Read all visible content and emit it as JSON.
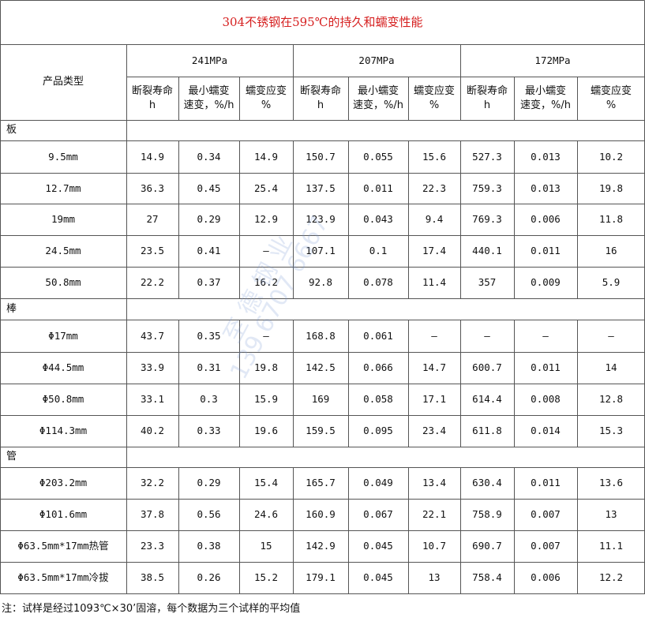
{
  "title": "304不锈钢在595℃的持久和蠕变性能",
  "header": {
    "product_type": "产品类型",
    "stress_groups": [
      "241MPa",
      "207MPa",
      "172MPa"
    ],
    "sub_columns": [
      "断裂寿命\nh",
      "最小蠕变\n速变，%/h",
      "蠕变应变\n%"
    ]
  },
  "sections": [
    {
      "name": "板",
      "rows": [
        {
          "label": "9.5mm",
          "values": [
            "14.9",
            "0.34",
            "14.9",
            "150.7",
            "0.055",
            "15.6",
            "527.3",
            "0.013",
            "10.2"
          ]
        },
        {
          "label": "12.7mm",
          "values": [
            "36.3",
            "0.45",
            "25.4",
            "137.5",
            "0.011",
            "22.3",
            "759.3",
            "0.013",
            "19.8"
          ]
        },
        {
          "label": "19mm",
          "values": [
            "27",
            "0.29",
            "12.9",
            "123.9",
            "0.043",
            "9.4",
            "769.3",
            "0.006",
            "11.8"
          ]
        },
        {
          "label": "24.5mm",
          "values": [
            "23.5",
            "0.41",
            "—",
            "107.1",
            "0.1",
            "17.4",
            "440.1",
            "0.011",
            "16"
          ]
        },
        {
          "label": "50.8mm",
          "values": [
            "22.2",
            "0.37",
            "16.2",
            "92.8",
            "0.078",
            "11.4",
            "357",
            "0.009",
            "5.9"
          ]
        }
      ]
    },
    {
      "name": "棒",
      "rows": [
        {
          "label": "Φ17mm",
          "values": [
            "43.7",
            "0.35",
            "—",
            "168.8",
            "0.061",
            "—",
            "—",
            "—",
            "—"
          ]
        },
        {
          "label": "Φ44.5mm",
          "values": [
            "33.9",
            "0.31",
            "19.8",
            "142.5",
            "0.066",
            "14.7",
            "600.7",
            "0.011",
            "14"
          ]
        },
        {
          "label": "Φ50.8mm",
          "values": [
            "33.1",
            "0.3",
            "15.9",
            "169",
            "0.058",
            "17.1",
            "614.4",
            "0.008",
            "12.8"
          ]
        },
        {
          "label": "Φ114.3mm",
          "values": [
            "40.2",
            "0.33",
            "19.6",
            "159.5",
            "0.095",
            "23.4",
            "611.8",
            "0.014",
            "15.3"
          ]
        }
      ]
    },
    {
      "name": "管",
      "rows": [
        {
          "label": "Φ203.2mm",
          "values": [
            "32.2",
            "0.29",
            "15.4",
            "165.7",
            "0.049",
            "13.4",
            "630.4",
            "0.011",
            "13.6"
          ]
        },
        {
          "label": "Φ101.6mm",
          "values": [
            "37.8",
            "0.56",
            "24.6",
            "160.9",
            "0.067",
            "22.1",
            "758.9",
            "0.007",
            "13"
          ]
        },
        {
          "label": "Φ63.5mm*17mm热管",
          "values": [
            "23.3",
            "0.38",
            "15",
            "142.9",
            "0.045",
            "10.7",
            "690.7",
            "0.007",
            "11.1"
          ]
        },
        {
          "label": "Φ63.5mm*17mm冷拔",
          "values": [
            "38.5",
            "0.26",
            "15.2",
            "179.1",
            "0.045",
            "13",
            "758.4",
            "0.006",
            "12.2"
          ]
        }
      ]
    }
  ],
  "note": "注：试样是经过1093℃×30’固溶，每个数据为三个试样的平均值",
  "watermark": {
    "line1": "至 德 钢 业",
    "line2": "139 6707 6667"
  },
  "colors": {
    "title": "#d62020",
    "grid": "#555555"
  }
}
